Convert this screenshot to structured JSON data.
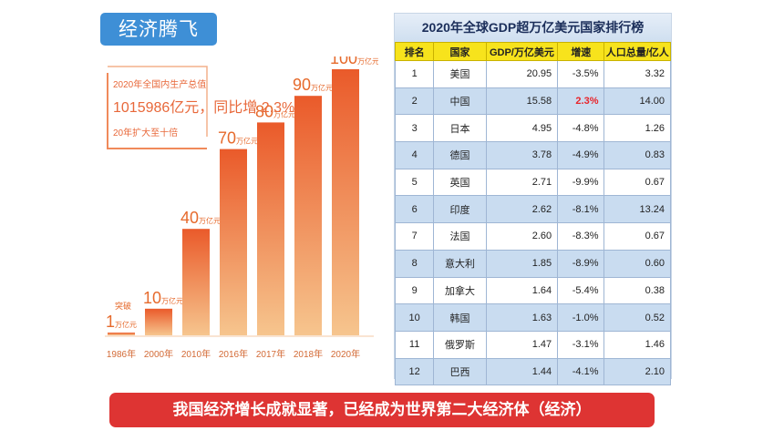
{
  "title_tag": "经济腾飞",
  "info_box": {
    "line1": "2020年全国内生产总值",
    "line2": "1015986亿元，同比增 2.3%",
    "line3": "20年扩大至十倍"
  },
  "chart_data": {
    "type": "bar",
    "categories": [
      "1986年",
      "2000年",
      "2010年",
      "2016年",
      "2017年",
      "2018年",
      "2020年"
    ],
    "values": [
      1,
      10,
      40,
      70,
      80,
      90,
      100
    ],
    "value_labels": [
      "1万亿元",
      "10万亿元",
      "40万亿元",
      "70万亿元",
      "80万亿元",
      "90万亿元",
      "100万亿元"
    ],
    "annotations": [
      "突破"
    ],
    "ylim": [
      0,
      100
    ],
    "colors": {
      "bar_top": "#ea5a2a",
      "bar_bottom": "#f6c58e"
    }
  },
  "table": {
    "title": "2020年全球GDP超万亿美元国家排行榜",
    "headers": [
      "排名",
      "国家",
      "GDP/万亿美元",
      "增速",
      "人口总量/亿人"
    ],
    "rows": [
      [
        "1",
        "美国",
        "20.95",
        "-3.5%",
        "3.32"
      ],
      [
        "2",
        "中国",
        "15.58",
        "2.3%",
        "14.00"
      ],
      [
        "3",
        "日本",
        "4.95",
        "-4.8%",
        "1.26"
      ],
      [
        "4",
        "德国",
        "3.78",
        "-4.9%",
        "0.83"
      ],
      [
        "5",
        "英国",
        "2.71",
        "-9.9%",
        "0.67"
      ],
      [
        "6",
        "印度",
        "2.62",
        "-8.1%",
        "13.24"
      ],
      [
        "7",
        "法国",
        "2.60",
        "-8.3%",
        "0.67"
      ],
      [
        "8",
        "意大利",
        "1.85",
        "-8.9%",
        "0.60"
      ],
      [
        "9",
        "加拿大",
        "1.64",
        "-5.4%",
        "0.38"
      ],
      [
        "10",
        "韩国",
        "1.63",
        "-1.0%",
        "0.52"
      ],
      [
        "11",
        "俄罗斯",
        "1.47",
        "-3.1%",
        "1.46"
      ],
      [
        "12",
        "巴西",
        "1.44",
        "-4.1%",
        "2.10"
      ]
    ],
    "highlight_color": "#e8242a"
  },
  "banner": "我国经济增长成就显著，已经成为世界第二大经济体（经济）",
  "colors": {
    "title_tag_bg": "#3e8fd6",
    "banner_bg": "#de3433",
    "table_header_bg": "#f7e31c"
  }
}
